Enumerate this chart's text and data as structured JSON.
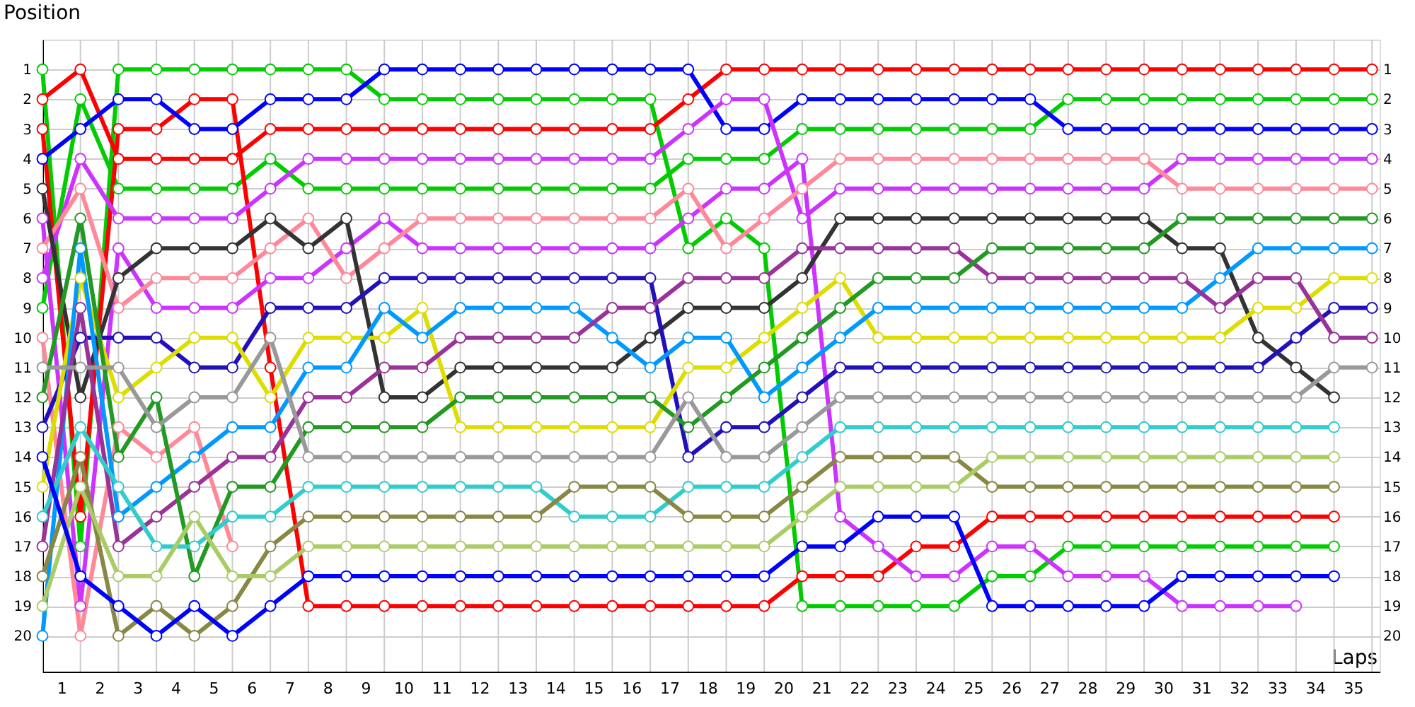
{
  "chart_data": {
    "type": "line",
    "xlabel": "Laps",
    "ylabel": "Position",
    "x": [
      0,
      1,
      2,
      3,
      4,
      5,
      6,
      7,
      8,
      9,
      10,
      11,
      12,
      13,
      14,
      15,
      16,
      17,
      18,
      19,
      20,
      21,
      22,
      23,
      24,
      25,
      26,
      27,
      28,
      29,
      30,
      31,
      32,
      33,
      34,
      35
    ],
    "xlim": [
      0,
      35.2
    ],
    "xticks": [
      {
        "value": 0.5,
        "label": "1"
      },
      {
        "value": 1.5,
        "label": "2"
      },
      {
        "value": 2.5,
        "label": "3"
      },
      {
        "value": 3.5,
        "label": "4"
      },
      {
        "value": 4.5,
        "label": "5"
      },
      {
        "value": 5.5,
        "label": "6"
      },
      {
        "value": 6.5,
        "label": "7"
      },
      {
        "value": 7.5,
        "label": "8"
      },
      {
        "value": 8.5,
        "label": "9"
      },
      {
        "value": 9.5,
        "label": "10"
      },
      {
        "value": 10.5,
        "label": "11"
      },
      {
        "value": 11.5,
        "label": "12"
      },
      {
        "value": 12.5,
        "label": "13"
      },
      {
        "value": 13.5,
        "label": "14"
      },
      {
        "value": 14.5,
        "label": "15"
      },
      {
        "value": 15.5,
        "label": "16"
      },
      {
        "value": 16.5,
        "label": "17"
      },
      {
        "value": 17.5,
        "label": "18"
      },
      {
        "value": 18.5,
        "label": "19"
      },
      {
        "value": 19.5,
        "label": "20"
      },
      {
        "value": 20.5,
        "label": "21"
      },
      {
        "value": 21.5,
        "label": "22"
      },
      {
        "value": 22.5,
        "label": "23"
      },
      {
        "value": 23.5,
        "label": "24"
      },
      {
        "value": 24.5,
        "label": "25"
      },
      {
        "value": 25.5,
        "label": "26"
      },
      {
        "value": 26.5,
        "label": "27"
      },
      {
        "value": 27.5,
        "label": "28"
      },
      {
        "value": 28.5,
        "label": "29"
      },
      {
        "value": 29.5,
        "label": "30"
      },
      {
        "value": 30.5,
        "label": "31"
      },
      {
        "value": 31.5,
        "label": "32"
      },
      {
        "value": 32.5,
        "label": "33"
      },
      {
        "value": 33.5,
        "label": "34"
      },
      {
        "value": 34.5,
        "label": "35"
      }
    ],
    "ylim": [
      21.2,
      0
    ],
    "yticks": [
      1,
      2,
      3,
      4,
      5,
      6,
      7,
      8,
      9,
      10,
      11,
      12,
      13,
      14,
      15,
      16,
      17,
      18,
      19,
      20
    ],
    "y2lim": [
      21.2,
      0
    ],
    "y2ticks": [
      1,
      2,
      3,
      4,
      5,
      6,
      7,
      8,
      9,
      10,
      11,
      12,
      13,
      14,
      15,
      16,
      17,
      18,
      19,
      20
    ],
    "grid": true,
    "legend": false,
    "marker": "circle",
    "line_style": "solid",
    "series": [
      {
        "color": "#00cc00",
        "values": [
          1,
          17,
          1,
          1,
          1,
          1,
          1,
          1,
          1,
          2,
          2,
          2,
          2,
          2,
          2,
          2,
          2,
          7,
          6,
          7,
          19,
          19,
          19,
          19,
          19,
          18,
          18,
          17,
          17,
          17,
          17,
          17,
          17,
          17,
          17,
          null
        ]
      },
      {
        "color": "#00cc00",
        "values": [
          9,
          2,
          5,
          5,
          5,
          5,
          4,
          5,
          5,
          5,
          5,
          5,
          5,
          5,
          5,
          5,
          5,
          4,
          4,
          4,
          3,
          3,
          3,
          3,
          3,
          3,
          3,
          2,
          2,
          2,
          2,
          2,
          2,
          2,
          2,
          2
        ]
      },
      {
        "color": "#ff0000",
        "values": [
          2,
          1,
          4,
          4,
          4,
          4,
          3,
          3,
          3,
          3,
          3,
          3,
          3,
          3,
          3,
          3,
          3,
          2,
          1,
          1,
          1,
          1,
          1,
          1,
          1,
          1,
          1,
          1,
          1,
          1,
          1,
          1,
          1,
          1,
          1,
          1
        ]
      },
      {
        "color": "#ff0000",
        "values": [
          3,
          16,
          3,
          3,
          2,
          2,
          11,
          19,
          19,
          19,
          19,
          19,
          19,
          19,
          19,
          19,
          19,
          19,
          19,
          19,
          18,
          18,
          18,
          17,
          17,
          16,
          16,
          16,
          16,
          16,
          16,
          16,
          16,
          16,
          16,
          null
        ]
      },
      {
        "color": "#0000ff",
        "values": [
          4,
          3,
          2,
          2,
          3,
          3,
          2,
          2,
          2,
          1,
          1,
          1,
          1,
          1,
          1,
          1,
          1,
          1,
          3,
          3,
          2,
          2,
          2,
          2,
          2,
          2,
          2,
          3,
          3,
          3,
          3,
          3,
          3,
          3,
          3,
          3
        ]
      },
      {
        "color": "#cc33ff",
        "values": [
          8,
          4,
          6,
          6,
          6,
          6,
          5,
          4,
          4,
          4,
          4,
          4,
          4,
          4,
          4,
          4,
          4,
          3,
          2,
          2,
          6,
          5,
          5,
          5,
          5,
          5,
          5,
          5,
          5,
          5,
          4,
          4,
          4,
          4,
          4,
          4
        ]
      },
      {
        "color": "#cc33ff",
        "values": [
          6,
          19,
          7,
          9,
          9,
          9,
          8,
          8,
          7,
          6,
          7,
          7,
          7,
          7,
          7,
          7,
          7,
          6,
          5,
          5,
          4,
          16,
          17,
          18,
          18,
          17,
          17,
          18,
          18,
          18,
          19,
          19,
          19,
          19,
          null,
          null
        ]
      },
      {
        "color": "#ff8899",
        "values": [
          7,
          5,
          9,
          8,
          8,
          8,
          7,
          6,
          8,
          7,
          6,
          6,
          6,
          6,
          6,
          6,
          6,
          5,
          7,
          6,
          5,
          4,
          4,
          4,
          4,
          4,
          4,
          4,
          4,
          4,
          5,
          5,
          5,
          5,
          5,
          5
        ]
      },
      {
        "color": "#ff8899",
        "values": [
          10,
          20,
          13,
          14,
          13,
          17,
          null,
          null,
          null,
          null,
          null,
          null,
          null,
          null,
          null,
          null,
          null,
          null,
          null,
          null,
          null,
          null,
          null,
          null,
          null,
          null,
          null,
          null,
          null,
          null,
          null,
          null,
          null,
          null,
          null,
          null
        ]
      },
      {
        "color": "#333333",
        "values": [
          5,
          12,
          8,
          7,
          7,
          7,
          6,
          7,
          6,
          12,
          12,
          11,
          11,
          11,
          11,
          11,
          10,
          9,
          9,
          9,
          8,
          6,
          6,
          6,
          6,
          6,
          6,
          6,
          6,
          6,
          7,
          7,
          10,
          11,
          12,
          null
        ]
      },
      {
        "color": "#2211bb",
        "values": [
          13,
          10,
          10,
          10,
          11,
          11,
          9,
          9,
          9,
          8,
          8,
          8,
          8,
          8,
          8,
          8,
          8,
          14,
          13,
          13,
          12,
          11,
          11,
          11,
          11,
          11,
          11,
          11,
          11,
          11,
          11,
          11,
          11,
          10,
          9,
          9
        ]
      },
      {
        "color": "#dddd00",
        "values": [
          15,
          8,
          12,
          11,
          10,
          10,
          12,
          10,
          10,
          10,
          9,
          13,
          13,
          13,
          13,
          13,
          13,
          11,
          11,
          10,
          9,
          8,
          10,
          10,
          10,
          10,
          10,
          10,
          10,
          10,
          10,
          10,
          9,
          9,
          8,
          8
        ]
      },
      {
        "color": "#0099ff",
        "values": [
          20,
          7,
          16,
          15,
          14,
          13,
          13,
          11,
          11,
          9,
          10,
          9,
          9,
          9,
          9,
          10,
          11,
          10,
          10,
          12,
          11,
          10,
          9,
          9,
          9,
          9,
          9,
          9,
          9,
          9,
          9,
          8,
          7,
          7,
          7,
          7
        ]
      },
      {
        "color": "#993399",
        "values": [
          17,
          9,
          17,
          16,
          15,
          14,
          14,
          12,
          12,
          11,
          11,
          10,
          10,
          10,
          10,
          9,
          9,
          8,
          8,
          8,
          7,
          7,
          7,
          7,
          7,
          8,
          8,
          8,
          8,
          8,
          8,
          9,
          8,
          8,
          10,
          10
        ]
      },
      {
        "color": "#229922",
        "values": [
          12,
          6,
          14,
          12,
          18,
          15,
          15,
          13,
          13,
          13,
          13,
          12,
          12,
          12,
          12,
          12,
          12,
          13,
          12,
          11,
          10,
          9,
          8,
          8,
          8,
          7,
          7,
          7,
          7,
          7,
          6,
          6,
          6,
          6,
          6,
          6
        ]
      },
      {
        "color": "#999999",
        "values": [
          11,
          11,
          11,
          13,
          12,
          12,
          10,
          14,
          14,
          14,
          14,
          14,
          14,
          14,
          14,
          14,
          14,
          12,
          14,
          14,
          13,
          12,
          12,
          12,
          12,
          12,
          12,
          12,
          12,
          12,
          12,
          12,
          12,
          12,
          11,
          11
        ]
      },
      {
        "color": "#33cccc",
        "values": [
          16,
          13,
          15,
          17,
          17,
          16,
          16,
          15,
          15,
          15,
          15,
          15,
          15,
          15,
          16,
          16,
          16,
          15,
          15,
          15,
          14,
          13,
          13,
          13,
          13,
          13,
          13,
          13,
          13,
          13,
          13,
          13,
          13,
          13,
          13,
          null
        ]
      },
      {
        "color": "#888844",
        "values": [
          18,
          14,
          20,
          19,
          20,
          19,
          17,
          16,
          16,
          16,
          16,
          16,
          16,
          16,
          15,
          15,
          15,
          16,
          16,
          16,
          15,
          14,
          14,
          14,
          14,
          15,
          15,
          15,
          15,
          15,
          15,
          15,
          15,
          15,
          15,
          null
        ]
      },
      {
        "color": "#aacc66",
        "values": [
          19,
          15,
          18,
          18,
          16,
          18,
          18,
          17,
          17,
          17,
          17,
          17,
          17,
          17,
          17,
          17,
          17,
          17,
          17,
          17,
          16,
          15,
          15,
          15,
          15,
          14,
          14,
          14,
          14,
          14,
          14,
          14,
          14,
          14,
          14,
          null
        ]
      },
      {
        "color": "#0000ff",
        "values": [
          14,
          18,
          19,
          20,
          19,
          20,
          19,
          18,
          18,
          18,
          18,
          18,
          18,
          18,
          18,
          18,
          18,
          18,
          18,
          18,
          17,
          17,
          16,
          16,
          16,
          19,
          19,
          19,
          19,
          19,
          18,
          18,
          18,
          18,
          18,
          null
        ]
      }
    ]
  }
}
